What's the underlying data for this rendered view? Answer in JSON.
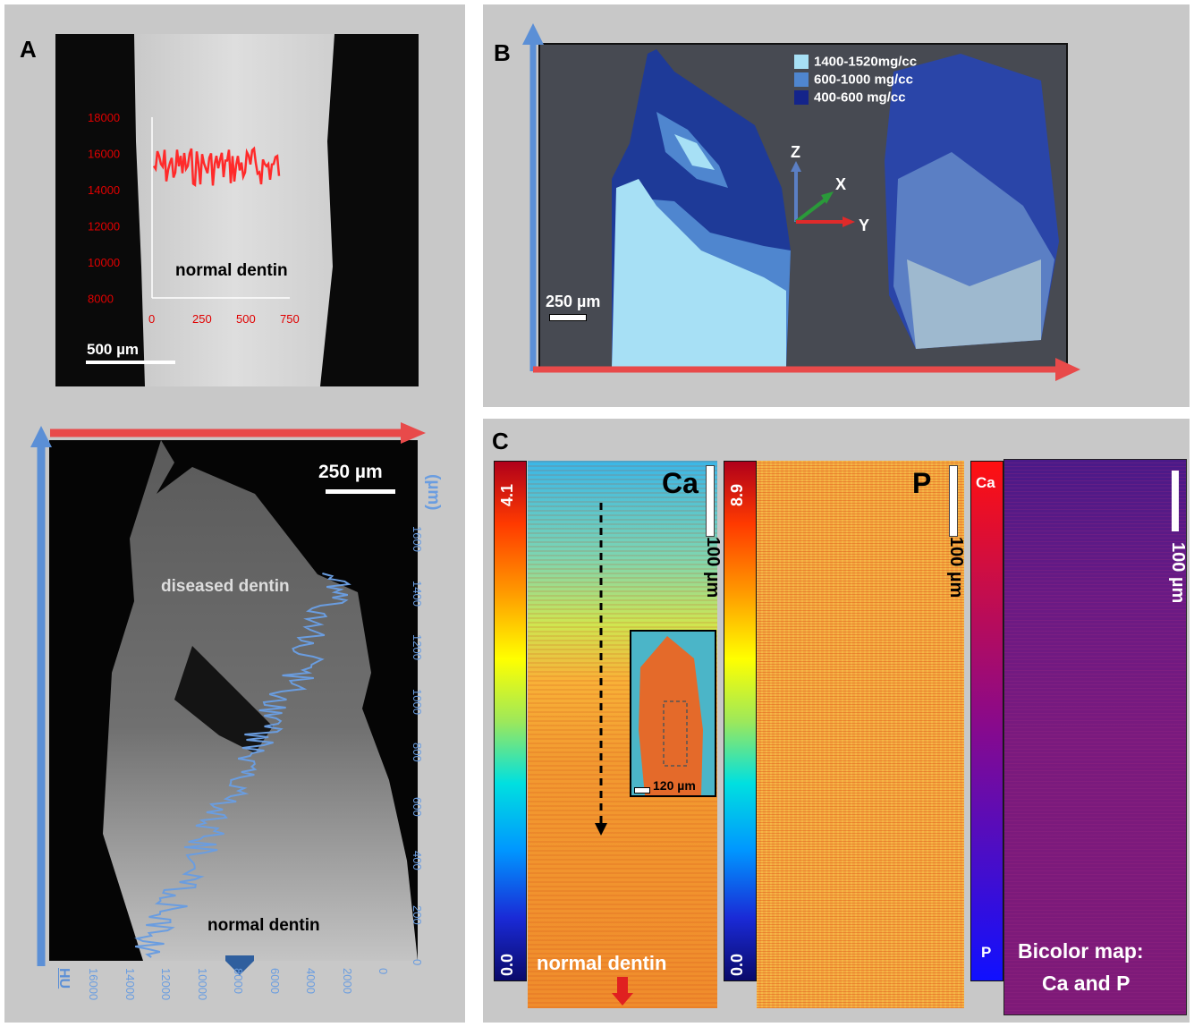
{
  "panels": {
    "a_label": "A",
    "b_label": "B",
    "c_label": "C"
  },
  "panel_a_top": {
    "region_label": "normal dentin",
    "scale_bar": "500 µm",
    "y_ticks": [
      "18000",
      "16000",
      "14000",
      "12000",
      "10000",
      "8000"
    ],
    "x_ticks": [
      "0",
      "250",
      "500",
      "750"
    ],
    "profile_color": "#ff2a2a"
  },
  "panel_a_bottom": {
    "scale_bar": "250 µm",
    "diseased_label": "diseased dentin",
    "normal_label": "normal dentin",
    "right_axis_label": "(µm)",
    "right_ticks": [
      "1600",
      "1400",
      "1200",
      "1000",
      "800",
      "600",
      "400",
      "200",
      "0"
    ],
    "bottom_axis_label": "HU",
    "bottom_ticks": [
      "16000",
      "14000",
      "12000",
      "10000",
      "8000",
      "6000",
      "4000",
      "2000",
      "0"
    ],
    "profile_color": "#6a9de0"
  },
  "panel_b": {
    "legend": [
      {
        "label": "1400-1520mg/cc",
        "color": "#a7e0f5"
      },
      {
        "label": "600-1000 mg/cc",
        "color": "#4f86cf"
      },
      {
        "label": "400-600 mg/cc",
        "color": "#14248a"
      }
    ],
    "axis_z": "Z",
    "axis_x": "X",
    "axis_y": "Y",
    "scale_bar": "250 µm"
  },
  "panel_c": {
    "ca_label": "Ca",
    "ca_max": "4.1",
    "ca_min": "0.0",
    "p_label": "P",
    "p_max": "8.9",
    "p_min": "0.0",
    "scale_bar": "100 µm",
    "inset_scale": "120 µm",
    "normal_label": "normal dentin",
    "bicolor_top": "Ca",
    "bicolor_bottom": "P",
    "bicolor_title_1": "Bicolor map:",
    "bicolor_title_2": "Ca and P"
  }
}
